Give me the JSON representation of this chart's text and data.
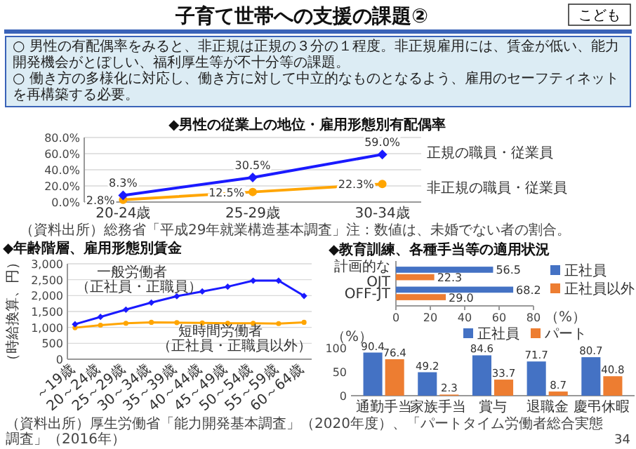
{
  "chart_data": [
    {
      "type": "other",
      "title": "子育て世帯への支援の課題②",
      "annotations": [
        "こども",
        "○ 男性の有配偶率をみると、非正規は正規の３分の１程度。非正規雇用には、賃金が低い、能力開発機会がとぼしい、福利厚生等が不十分等の課題。",
        "○ 働き方の多様化に対応し、働き方に対して中立的なものとなるよう、雇用のセーフティネットを再構築する必要。",
        "34"
      ]
    },
    {
      "type": "line",
      "title": "◆男性の従業上の地位・雇用形態別有配偶率",
      "categories": [
        "20-24歳",
        "25-29歳",
        "30-34歳"
      ],
      "ylim": [
        0,
        80
      ],
      "yticks": [
        {
          "value": 0,
          "label": "0.0%"
        },
        {
          "value": 20,
          "label": "20.0%"
        },
        {
          "value": 40,
          "label": "40.0%"
        },
        {
          "value": 60,
          "label": "60.0%"
        },
        {
          "value": 80,
          "label": "80.0%"
        }
      ],
      "grid": "y",
      "series": [
        {
          "name": "正規の職員・従業員",
          "color": "#1a1aff",
          "values": [
            8.3,
            30.5,
            59.0
          ],
          "value_labels": [
            "8.3%",
            "30.5%",
            "59.0%"
          ],
          "marker": "diamond"
        },
        {
          "name": "非正規の職員・従業員",
          "color": "#ffa500",
          "values": [
            2.8,
            12.5,
            22.3
          ],
          "value_labels": [
            "2.8%",
            "12.5%",
            "22.3%"
          ],
          "marker": "circle"
        }
      ],
      "annotations": [
        "（資料出所）総務省「平成29年就業構造基本調査」注：数値は、未婚でない者の割合。"
      ]
    },
    {
      "type": "line",
      "title": "◆年齢階層、雇用形態別賃金",
      "ylabel": "（時給換算、円）",
      "categories": [
        "～19歳",
        "20～24歳",
        "25～29歳",
        "30～34歳",
        "35～39歳",
        "40～44歳",
        "45～49歳",
        "50～54歳",
        "55～59歳",
        "60～64歳"
      ],
      "ylim": [
        0,
        3000
      ],
      "yticks": [
        {
          "value": 0,
          "label": "0"
        },
        {
          "value": 500,
          "label": "500"
        },
        {
          "value": 1000,
          "label": "1,000"
        },
        {
          "value": 1500,
          "label": "1,500"
        },
        {
          "value": 2000,
          "label": "2,000"
        },
        {
          "value": 2500,
          "label": "2,500"
        },
        {
          "value": 3000,
          "label": "3,000"
        }
      ],
      "grid": "y",
      "series": [
        {
          "name": "一般労働者（正社員・正職員）",
          "color": "#1a1aff",
          "values": [
            1100,
            1330,
            1560,
            1780,
            1980,
            2130,
            2280,
            2470,
            2470,
            1990
          ],
          "marker": "diamond"
        },
        {
          "name": "短時間労働者（正社員・正職員以外）",
          "color": "#ffa500",
          "values": [
            990,
            1070,
            1130,
            1160,
            1150,
            1140,
            1130,
            1130,
            1120,
            1160
          ],
          "marker": "circle"
        }
      ]
    },
    {
      "type": "bar",
      "orientation": "horizontal",
      "title": "◆教育訓練、各種手当等の適用状況",
      "xlabel": "（%）",
      "categories": [
        "計画的なOJT",
        "OFF-JT"
      ],
      "xlim": [
        0,
        80
      ],
      "xticks": [
        0,
        20,
        40,
        60,
        80
      ],
      "legend": "right",
      "series": [
        {
          "name": "正社員",
          "color": "#4472c4",
          "values": [
            56.5,
            68.2
          ],
          "value_labels": [
            "56.5",
            "68.2"
          ]
        },
        {
          "name": "正社員以外",
          "color": "#ed7d31",
          "values": [
            22.3,
            29.0
          ],
          "value_labels": [
            "22.3",
            "29.0"
          ]
        }
      ]
    },
    {
      "type": "bar",
      "ylabel": "（%）",
      "categories": [
        "通勤手当",
        "家族手当",
        "賞与",
        "退職金",
        "慶弔休暇"
      ],
      "ylim": [
        0,
        100
      ],
      "yticks": [
        0,
        50,
        100
      ],
      "legend": "top",
      "data_labels": true,
      "series": [
        {
          "name": "正社員",
          "color": "#4472c4",
          "values": [
            90.4,
            49.2,
            84.6,
            71.7,
            80.7
          ]
        },
        {
          "name": "パート",
          "color": "#ed7d31",
          "values": [
            76.4,
            2.3,
            33.7,
            8.7,
            40.8
          ]
        }
      ],
      "annotations": [
        "（資料出所）厚生労働省「能力開発基本調査」（2020年度）、「パートタイム労働者総合実態調査」（2016年）"
      ]
    }
  ]
}
